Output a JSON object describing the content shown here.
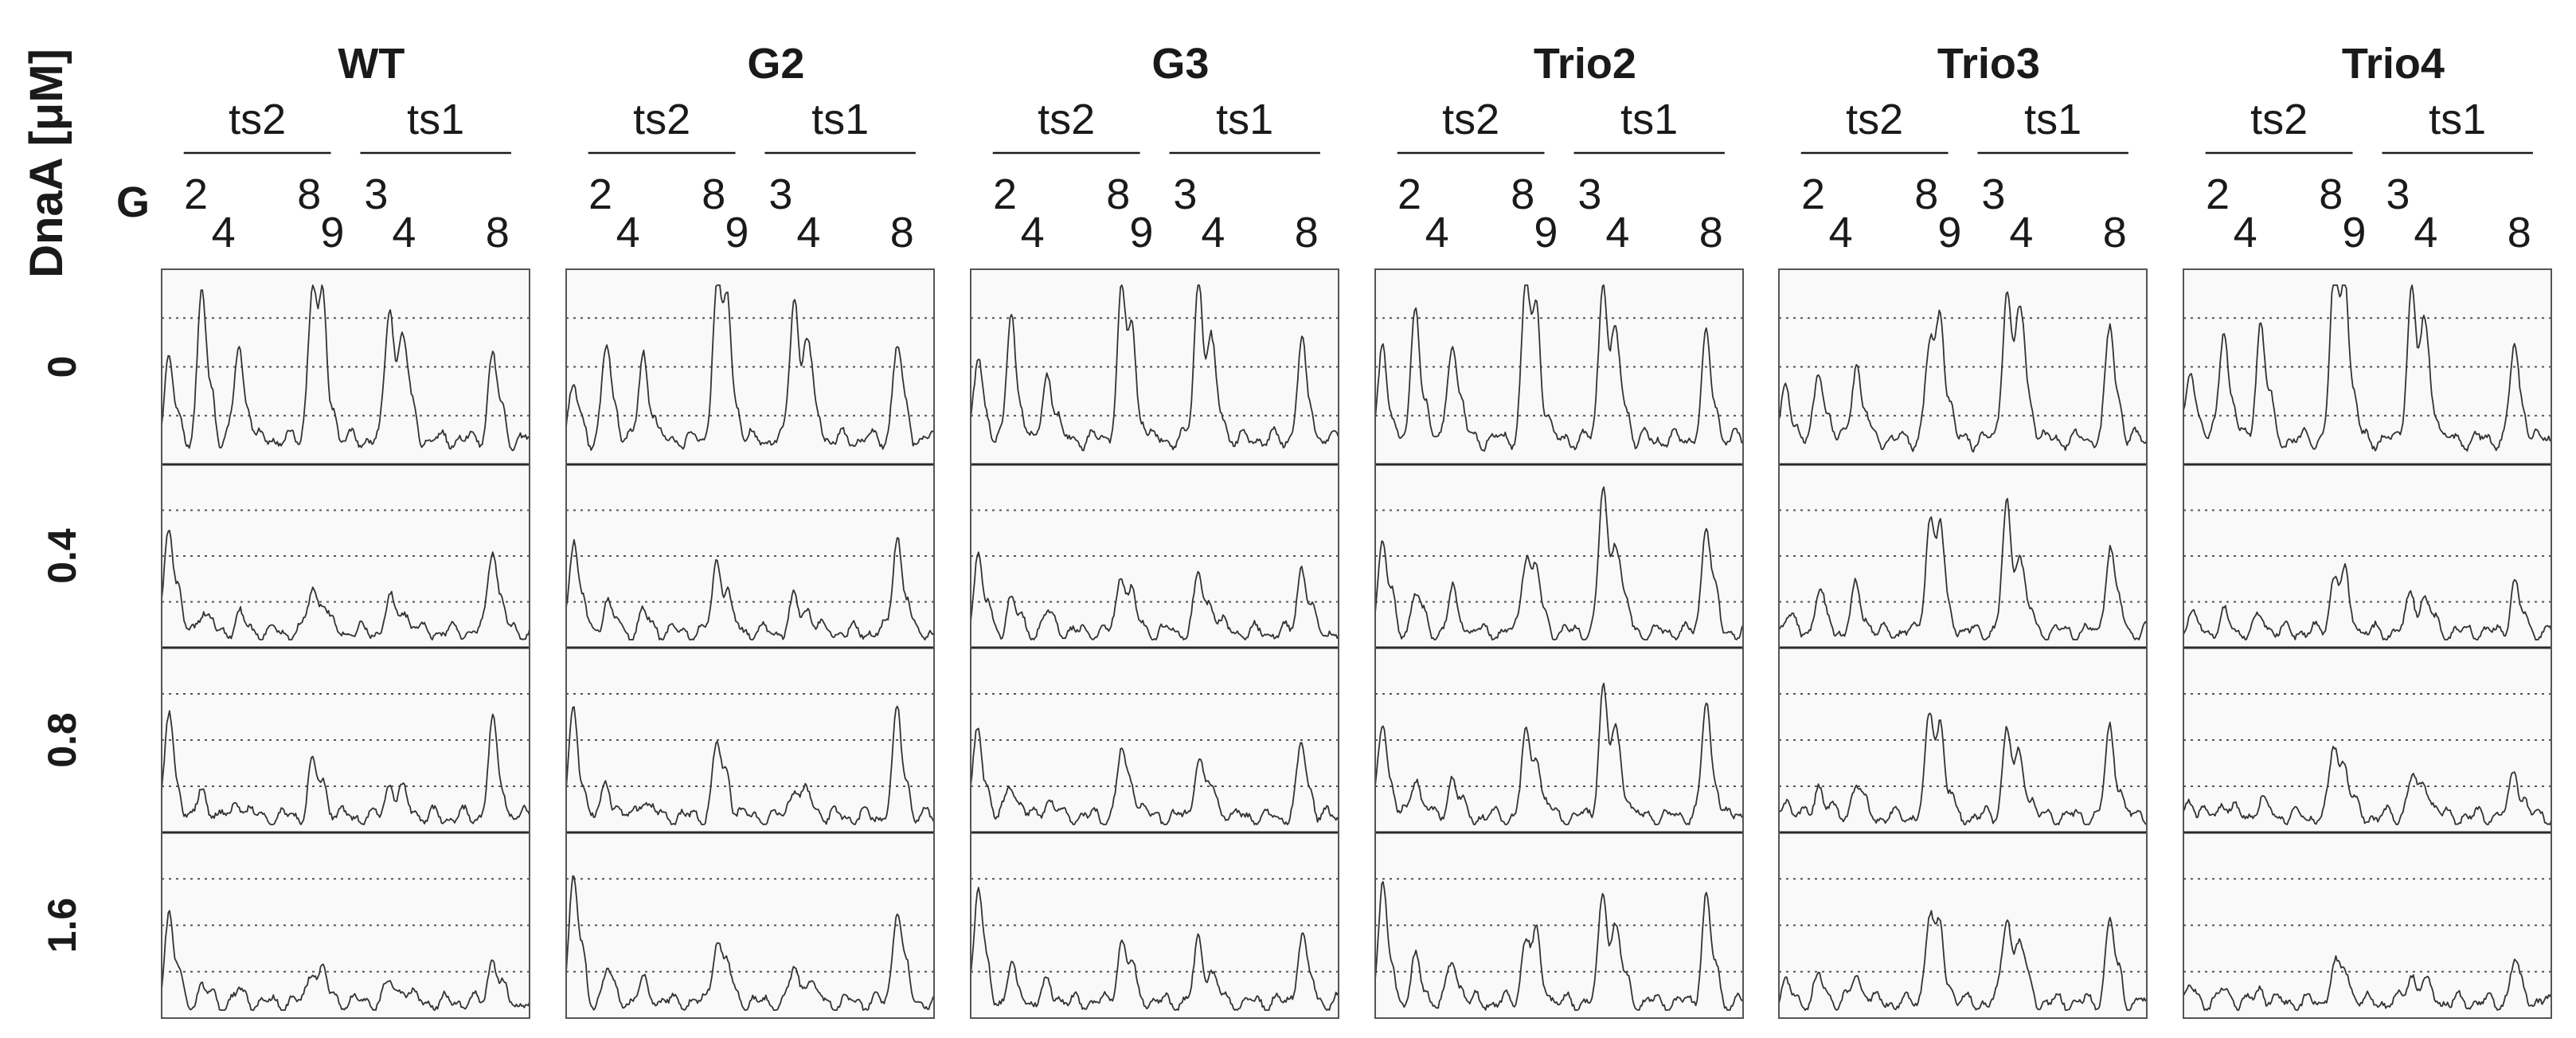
{
  "chart_data": {
    "type": "line",
    "title": "",
    "ylabel": "DnaA [μM]",
    "site_row_label": "G",
    "constructs": [
      "WT",
      "G2",
      "G3",
      "Trio2",
      "Trio3",
      "Trio4"
    ],
    "strands": [
      "ts2",
      "ts1"
    ],
    "site_labels": [
      {
        "text": "2",
        "pos": 0.093,
        "raised": true
      },
      {
        "text": "4",
        "pos": 0.168,
        "raised": false
      },
      {
        "text": "8",
        "pos": 0.401,
        "raised": true
      },
      {
        "text": "9",
        "pos": 0.464,
        "raised": false
      },
      {
        "text": "3",
        "pos": 0.583,
        "raised": true
      },
      {
        "text": "4",
        "pos": 0.659,
        "raised": false
      },
      {
        "text": "8",
        "pos": 0.913,
        "raised": false
      }
    ],
    "dnaa_concentrations": [
      "0",
      "0.4",
      "0.8",
      "1.6"
    ],
    "grid": "dotted horizontal",
    "peak_positions": [
      0.02,
      0.11,
      0.21,
      0.41,
      0.44,
      0.62,
      0.66,
      0.9
    ],
    "traces": {
      "WT": [
        [
          0.45,
          0.85,
          0.55,
          0.9,
          0.55,
          0.8,
          0.5,
          0.5
        ],
        [
          0.7,
          0.15,
          0.1,
          0.28,
          0.12,
          0.2,
          0.12,
          0.55
        ],
        [
          0.62,
          0.15,
          0.1,
          0.32,
          0.12,
          0.22,
          0.12,
          0.58
        ],
        [
          0.55,
          0.1,
          0.06,
          0.22,
          0.12,
          0.12,
          0.08,
          0.28
        ]
      ],
      "G2": [
        [
          0.3,
          0.55,
          0.5,
          0.92,
          0.55,
          0.85,
          0.45,
          0.55
        ],
        [
          0.6,
          0.2,
          0.12,
          0.45,
          0.12,
          0.2,
          0.12,
          0.62
        ],
        [
          0.65,
          0.2,
          0.12,
          0.45,
          0.12,
          0.2,
          0.12,
          0.65
        ],
        [
          0.8,
          0.2,
          0.12,
          0.4,
          0.12,
          0.2,
          0.12,
          0.6
        ]
      ],
      "G3": [
        [
          0.45,
          0.7,
          0.4,
          0.85,
          0.4,
          0.95,
          0.4,
          0.55
        ],
        [
          0.5,
          0.22,
          0.12,
          0.38,
          0.12,
          0.35,
          0.12,
          0.42
        ],
        [
          0.55,
          0.22,
          0.12,
          0.4,
          0.12,
          0.38,
          0.12,
          0.45
        ],
        [
          0.7,
          0.2,
          0.12,
          0.38,
          0.12,
          0.38,
          0.12,
          0.42
        ]
      ],
      "Trio2": [
        [
          0.5,
          0.75,
          0.6,
          0.9,
          0.5,
          0.95,
          0.45,
          0.6
        ],
        [
          0.6,
          0.25,
          0.25,
          0.5,
          0.25,
          0.9,
          0.45,
          0.7
        ],
        [
          0.6,
          0.25,
          0.25,
          0.5,
          0.25,
          0.8,
          0.4,
          0.7
        ],
        [
          0.7,
          0.25,
          0.25,
          0.4,
          0.28,
          0.7,
          0.35,
          0.65
        ]
      ],
      "Trio3": [
        [
          0.3,
          0.4,
          0.45,
          0.55,
          0.6,
          0.9,
          0.65,
          0.65
        ],
        [
          0.1,
          0.25,
          0.28,
          0.7,
          0.45,
          0.8,
          0.35,
          0.55
        ],
        [
          0.1,
          0.2,
          0.22,
          0.62,
          0.4,
          0.55,
          0.3,
          0.55
        ],
        [
          0.1,
          0.15,
          0.18,
          0.55,
          0.3,
          0.55,
          0.3,
          0.5
        ]
      ],
      "Trio4": [
        [
          0.4,
          0.65,
          0.7,
          0.95,
          0.7,
          0.9,
          0.55,
          0.55
        ],
        [
          0.1,
          0.1,
          0.1,
          0.35,
          0.25,
          0.25,
          0.18,
          0.3
        ],
        [
          0.1,
          0.1,
          0.1,
          0.45,
          0.2,
          0.25,
          0.18,
          0.3
        ],
        [
          0.08,
          0.08,
          0.08,
          0.22,
          0.15,
          0.18,
          0.1,
          0.25
        ]
      ]
    }
  }
}
